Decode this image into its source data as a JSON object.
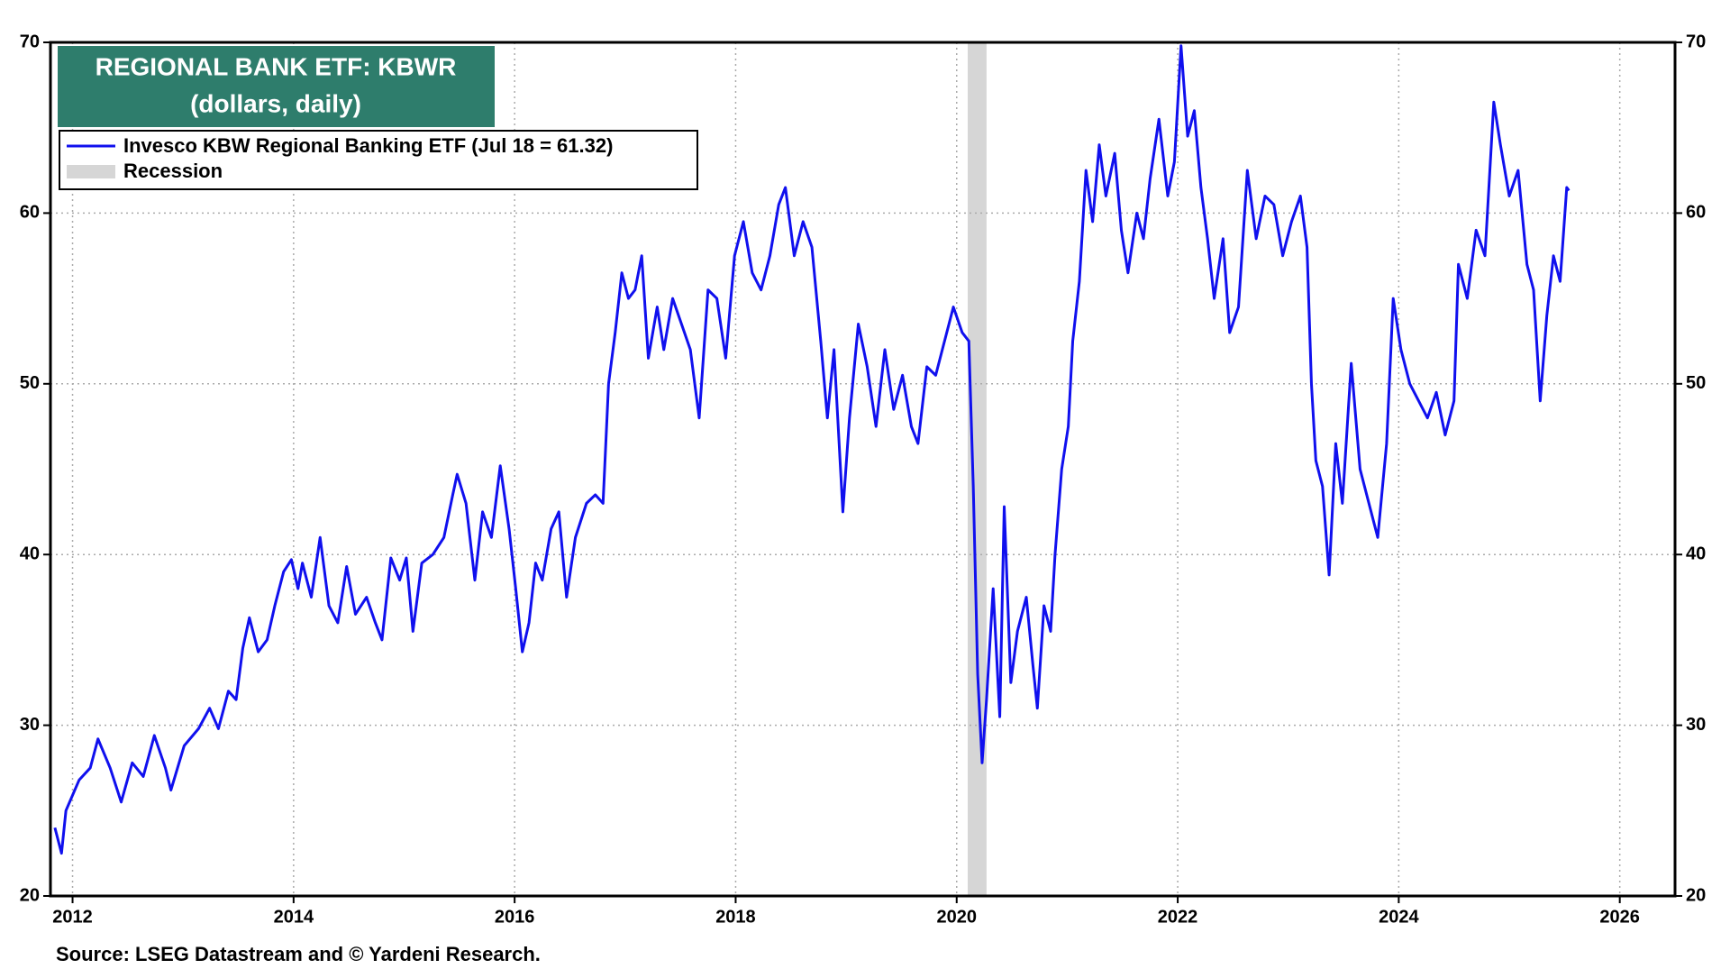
{
  "chart_data": {
    "type": "line",
    "title": "REGIONAL BANK ETF: KBWR",
    "subtitle": "(dollars, daily)",
    "source": "Source: LSEG Datastream and © Yardeni Research.",
    "xlim": [
      2011.8,
      2026.5
    ],
    "xticks": [
      2012,
      2014,
      2016,
      2018,
      2020,
      2022,
      2024,
      2026
    ],
    "ylim": [
      20,
      70
    ],
    "yticks": [
      20,
      30,
      40,
      50,
      60,
      70
    ],
    "y2lim": [
      20,
      70
    ],
    "y2ticks": [
      20,
      30,
      40,
      50,
      60,
      70
    ],
    "grid": true,
    "legend": "upper left",
    "recession": {
      "name": "Recession",
      "color": "#d6d6d6",
      "x": [
        2020.1,
        2020.27
      ]
    },
    "x": [
      2011.84,
      2011.9,
      2011.94,
      2012.06,
      2012.16,
      2012.23,
      2012.34,
      2012.44,
      2012.54,
      2012.64,
      2012.74,
      2012.84,
      2012.89,
      2013.01,
      2013.14,
      2013.24,
      2013.32,
      2013.41,
      2013.48,
      2013.54,
      2013.6,
      2013.68,
      2013.76,
      2013.83,
      2013.91,
      2013.98,
      2014.04,
      2014.08,
      2014.16,
      2014.24,
      2014.32,
      2014.4,
      2014.48,
      2014.56,
      2014.66,
      2014.74,
      2014.8,
      2014.88,
      2014.96,
      2015.02,
      2015.08,
      2015.16,
      2015.26,
      2015.36,
      2015.44,
      2015.48,
      2015.56,
      2015.64,
      2015.71,
      2015.79,
      2015.87,
      2015.95,
      2016.01,
      2016.07,
      2016.13,
      2016.19,
      2016.25,
      2016.33,
      2016.4,
      2016.47,
      2016.55,
      2016.65,
      2016.73,
      2016.8,
      2016.85,
      2016.91,
      2016.97,
      2017.03,
      2017.09,
      2017.15,
      2017.21,
      2017.29,
      2017.35,
      2017.43,
      2017.51,
      2017.59,
      2017.67,
      2017.75,
      2017.83,
      2017.91,
      2017.99,
      2018.07,
      2018.15,
      2018.23,
      2018.31,
      2018.39,
      2018.45,
      2018.53,
      2018.61,
      2018.69,
      2018.77,
      2018.83,
      2018.89,
      2018.97,
      2019.03,
      2019.11,
      2019.19,
      2019.27,
      2019.35,
      2019.43,
      2019.51,
      2019.59,
      2019.65,
      2019.73,
      2019.81,
      2019.89,
      2019.97,
      2020.05,
      2020.11,
      2020.15,
      2020.19,
      2020.23,
      2020.27,
      2020.33,
      2020.39,
      2020.43,
      2020.49,
      2020.55,
      2020.63,
      2020.69,
      2020.73,
      2020.79,
      2020.85,
      2020.89,
      2020.95,
      2021.01,
      2021.05,
      2021.11,
      2021.17,
      2021.23,
      2021.29,
      2021.35,
      2021.43,
      2021.49,
      2021.55,
      2021.63,
      2021.69,
      2021.75,
      2021.83,
      2021.91,
      2021.97,
      2022.03,
      2022.09,
      2022.15,
      2022.21,
      2022.27,
      2022.33,
      2022.41,
      2022.47,
      2022.55,
      2022.63,
      2022.71,
      2022.79,
      2022.87,
      2022.95,
      2023.03,
      2023.11,
      2023.17,
      2023.21,
      2023.25,
      2023.31,
      2023.37,
      2023.43,
      2023.49,
      2023.57,
      2023.65,
      2023.73,
      2023.81,
      2023.89,
      2023.95,
      2024.02,
      2024.1,
      2024.18,
      2024.26,
      2024.34,
      2024.42,
      2024.5,
      2024.54,
      2024.62,
      2024.7,
      2024.78,
      2024.86,
      2024.92,
      2025.0,
      2025.08,
      2025.16,
      2025.22,
      2025.28,
      2025.34,
      2025.4,
      2025.46,
      2025.52,
      2025.54
    ],
    "series": [
      {
        "name": "Invesco KBW Regional Banking ETF (Jul 18 = 61.32)",
        "color": "#1010ee",
        "values": [
          24,
          22.5,
          25,
          26.8,
          27.5,
          29.2,
          27.5,
          25.5,
          27.8,
          27,
          29.4,
          27.5,
          26.2,
          28.8,
          29.8,
          31,
          29.8,
          32,
          31.5,
          34.5,
          36.3,
          34.3,
          35,
          37,
          39,
          39.7,
          38,
          39.5,
          37.5,
          41,
          37,
          36,
          39.3,
          36.5,
          37.5,
          36,
          35,
          39.8,
          38.5,
          39.8,
          35.5,
          39.5,
          40,
          41,
          43.5,
          44.7,
          43,
          38.5,
          42.5,
          41,
          45.2,
          41.5,
          38,
          34.3,
          36,
          39.5,
          38.5,
          41.5,
          42.5,
          37.5,
          41,
          43,
          43.5,
          43,
          50,
          53,
          56.5,
          55,
          55.5,
          57.5,
          51.5,
          54.5,
          52,
          55,
          53.5,
          52,
          48,
          55.5,
          55,
          51.5,
          57.5,
          59.5,
          56.5,
          55.5,
          57.5,
          60.5,
          61.5,
          57.5,
          59.5,
          58,
          52.5,
          48,
          52,
          42.5,
          48,
          53.5,
          51,
          47.5,
          52,
          48.5,
          50.5,
          47.5,
          46.5,
          51,
          50.5,
          52.5,
          54.5,
          53,
          52.5,
          44,
          33,
          27.8,
          31.5,
          38,
          30.5,
          42.8,
          32.5,
          35.5,
          37.5,
          33.5,
          31,
          37,
          35.5,
          40,
          45,
          47.5,
          52.5,
          56,
          62.5,
          59.5,
          64,
          61,
          63.5,
          59,
          56.5,
          60,
          58.5,
          62,
          65.5,
          61,
          63,
          69.8,
          64.5,
          66,
          61.5,
          58.5,
          55,
          58.5,
          53,
          54.5,
          62.5,
          58.5,
          61,
          60.5,
          57.5,
          59.5,
          61,
          58,
          50,
          45.5,
          44,
          38.8,
          46.5,
          43,
          51.2,
          45,
          43,
          41,
          46.5,
          55,
          52,
          50,
          49,
          48,
          49.5,
          47,
          49,
          57,
          55,
          59,
          57.5,
          66.5,
          64,
          61,
          62.5,
          57,
          55.5,
          49,
          54,
          57.5,
          56,
          61.5,
          61.32
        ]
      }
    ]
  }
}
